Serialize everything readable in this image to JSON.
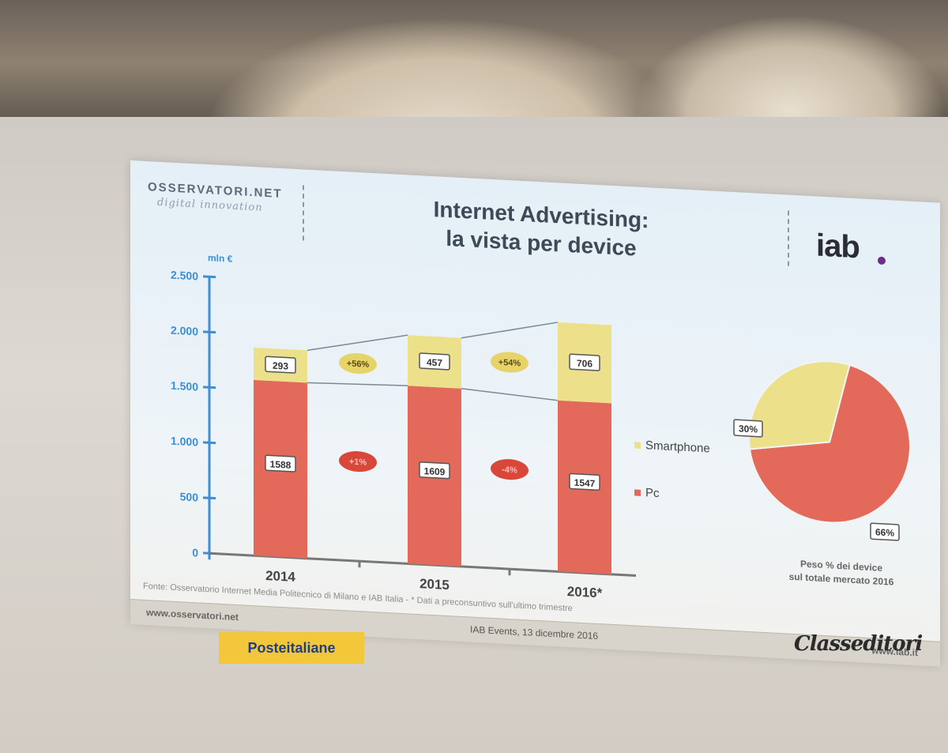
{
  "header": {
    "logo_left_line1": "OSSERVATORI.NET",
    "logo_left_line2": "digital innovation",
    "title_line1": "Internet Advertising:",
    "title_line2": "la vista per device",
    "logo_right": "iab"
  },
  "chart_data": [
    {
      "type": "bar",
      "stacked": true,
      "unit_label": "mln €",
      "categories": [
        "2014",
        "2015",
        "2016*"
      ],
      "series": [
        {
          "name": "Pc",
          "values": [
            1588,
            1609,
            1547
          ],
          "color": "#e36a5a"
        },
        {
          "name": "Smartphone",
          "values": [
            293,
            457,
            706
          ],
          "color": "#ece08a"
        }
      ],
      "ylim": [
        0,
        2500
      ],
      "yticks": [
        0,
        500,
        1000,
        1500,
        2000,
        2500
      ],
      "ytick_labels": [
        "0",
        "500",
        "1.000",
        "1.500",
        "2.000",
        "2.500"
      ],
      "growth_labels": {
        "smartphone": [
          "+56%",
          "+54%"
        ],
        "pc": [
          "+1%",
          "-4%"
        ]
      },
      "legend": [
        "Smartphone",
        "Pc"
      ],
      "legend_position": "right"
    },
    {
      "type": "pie",
      "slices": [
        {
          "label": "66%",
          "value": 66,
          "color": "#e36a5a"
        },
        {
          "label": "30%",
          "value": 30,
          "color": "#ece08a"
        }
      ],
      "caption_line1": "Peso % dei device",
      "caption_line2": "sul totale mercato 2016"
    }
  ],
  "source": "Fonte: Osservatorio Internet Media Politecnico di Milano e IAB Italia - * Dati a preconsuntivo sull'ultimo trimestre",
  "footer": {
    "left": "www.osservatori.net",
    "middle": "IAB Events, 13 dicembre 2016",
    "right": "www.iab.it"
  },
  "sponsors": {
    "left": "Posteitaliane",
    "right": "Classeditori"
  }
}
